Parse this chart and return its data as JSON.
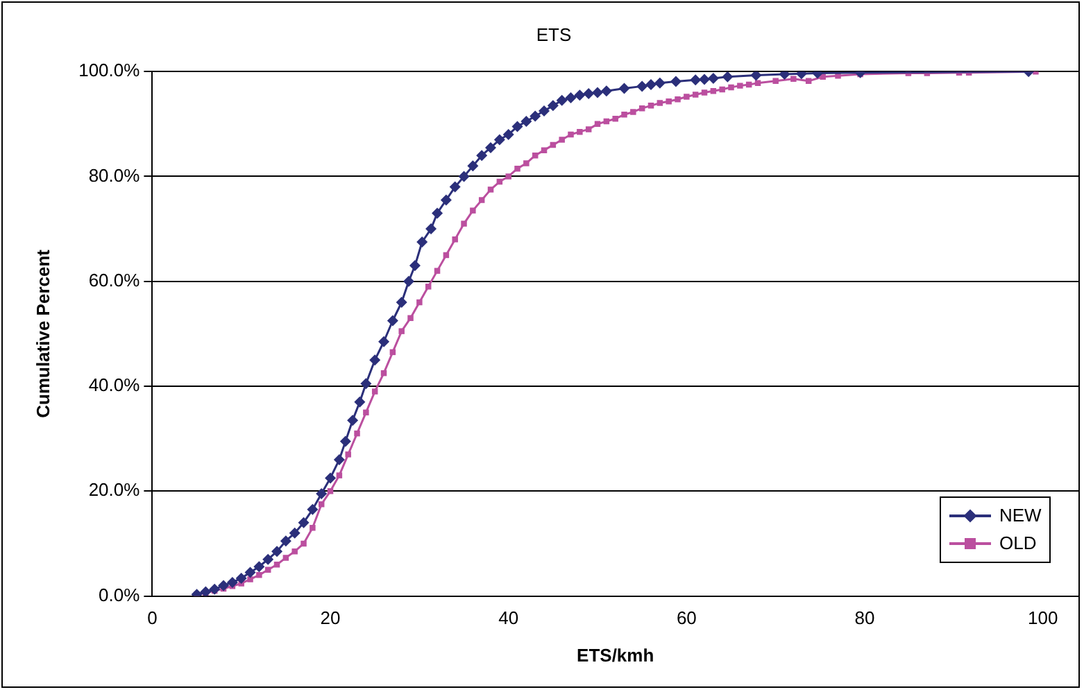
{
  "chart_data": {
    "type": "line",
    "title": "ETS",
    "xlabel": "ETS/kmh",
    "ylabel": "Cumulative Percent",
    "xlim": [
      0,
      104
    ],
    "xticks": [
      0,
      20,
      40,
      60,
      80,
      100
    ],
    "ylim": [
      0,
      100
    ],
    "yticks": [
      {
        "value": 0,
        "label": "0.0%"
      },
      {
        "value": 20,
        "label": "20.0%"
      },
      {
        "value": 40,
        "label": "40.0%"
      },
      {
        "value": 60,
        "label": "60.0%"
      },
      {
        "value": 80,
        "label": "80.0%"
      },
      {
        "value": 100,
        "label": "100.0%"
      }
    ],
    "grid": "y",
    "legend": "bottom right",
    "series": [
      {
        "name": "NEW",
        "color": "#2b2f7a",
        "marker": "diamond",
        "x": [
          5,
          6,
          7,
          8,
          9,
          10,
          11,
          12,
          13,
          14,
          15,
          16,
          17,
          18,
          19,
          20,
          21,
          21.7,
          22.5,
          23.3,
          24,
          25,
          26,
          27,
          28,
          28.8,
          29.5,
          30.3,
          31.3,
          32,
          33,
          34,
          35,
          36,
          37,
          38,
          39,
          40,
          41,
          42,
          43,
          44,
          45,
          46,
          47,
          48,
          49,
          50,
          51,
          53,
          55,
          56,
          57,
          58.8,
          61,
          62,
          63,
          64.6,
          67.8,
          71,
          72.9,
          74.7,
          79.5,
          98.4
        ],
        "values": [
          0.3,
          0.8,
          1.3,
          2,
          2.6,
          3.4,
          4.5,
          5.6,
          7,
          8.5,
          10.5,
          12,
          14,
          16.5,
          19.5,
          22.5,
          26,
          29.5,
          33.5,
          37,
          40.5,
          45,
          48.5,
          52.5,
          56,
          60,
          63,
          67.5,
          70,
          73,
          75.5,
          78,
          80,
          82,
          84,
          85.5,
          87,
          88,
          89.5,
          90.5,
          91.5,
          92.5,
          93.5,
          94.5,
          95,
          95.5,
          95.8,
          96,
          96.3,
          96.8,
          97.2,
          97.5,
          97.8,
          98.1,
          98.4,
          98.5,
          98.7,
          99,
          99.3,
          99.5,
          99.6,
          99.7,
          99.8,
          100
        ]
      },
      {
        "name": "OLD",
        "color": "#bb4f9f",
        "marker": "square",
        "x": [
          5,
          6,
          7,
          8,
          9,
          10,
          11,
          12,
          13,
          14,
          15,
          16,
          17,
          18,
          19,
          20,
          21,
          22,
          23,
          24,
          25,
          26,
          27,
          28,
          29,
          30,
          31,
          32,
          33,
          34,
          35,
          36,
          37,
          38,
          39,
          40,
          41,
          42,
          43,
          44,
          45,
          46,
          47,
          48,
          49,
          50,
          51,
          52,
          53,
          54,
          55,
          56,
          57,
          58,
          59,
          60,
          61,
          62,
          63,
          64,
          65,
          66,
          67,
          68,
          70,
          72,
          73.7,
          75.3,
          77,
          79.5,
          84.9,
          87,
          90.6,
          91.7,
          99.2
        ],
        "values": [
          0.3,
          0.6,
          1,
          1.4,
          1.9,
          2.4,
          3.2,
          4,
          5,
          6,
          7.3,
          8.5,
          10,
          13,
          17.5,
          20,
          23,
          27,
          31,
          35,
          39,
          42.5,
          46.5,
          50.5,
          53,
          56,
          59,
          62,
          65,
          68,
          71,
          73.5,
          75.5,
          77.5,
          79,
          80,
          81.5,
          82.5,
          84,
          85,
          86,
          87,
          88,
          88.5,
          89,
          90,
          90.5,
          91,
          91.8,
          92.3,
          93,
          93.5,
          94,
          94.3,
          94.7,
          95.2,
          95.6,
          96,
          96.3,
          96.6,
          97,
          97.3,
          97.5,
          97.8,
          98.2,
          98.6,
          98.2,
          99,
          99.2,
          99.5,
          99.7,
          99.7,
          99.8,
          99.8,
          100
        ]
      }
    ]
  }
}
